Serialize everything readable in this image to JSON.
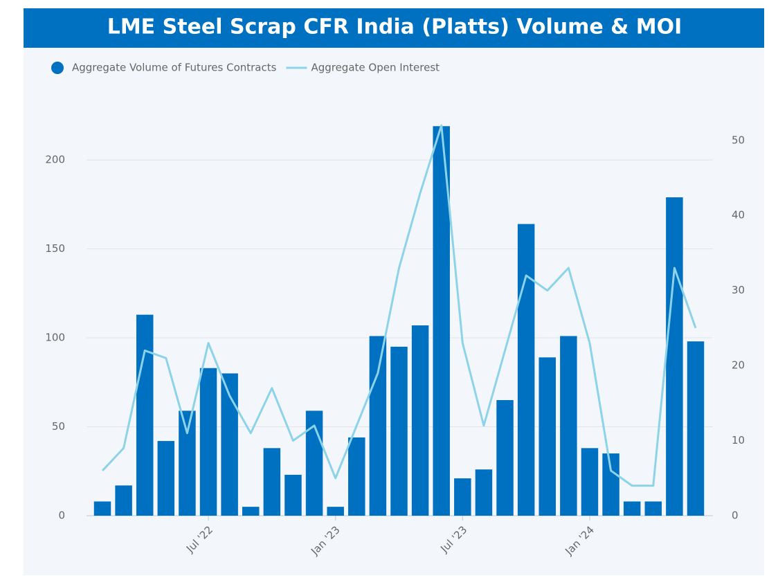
{
  "chart_data": {
    "type": "bar-line",
    "title": "LME Steel Scrap CFR India (Platts) Volume & MOI",
    "categories": [
      null,
      null,
      null,
      null,
      null,
      "Jul '22",
      null,
      null,
      null,
      null,
      null,
      "Jan '23",
      null,
      null,
      null,
      null,
      null,
      "Jul '23",
      null,
      null,
      null,
      null,
      null,
      "Jan '24",
      null,
      null,
      null,
      null,
      null
    ],
    "series": [
      {
        "name": "Aggregate Volume of Futures Contracts",
        "color": "#0070c0",
        "type": "bar",
        "values": [
          8,
          17,
          113,
          42,
          59,
          83,
          80,
          5,
          38,
          23,
          59,
          5,
          44,
          101,
          95,
          107,
          219,
          21,
          26,
          65,
          164,
          89,
          101,
          38,
          35,
          8,
          8,
          179,
          98
        ]
      },
      {
        "name": "Aggregate Open Interest",
        "color": "#8dd3e8",
        "type": "line",
        "axis": "y2",
        "values": [
          6,
          9,
          22,
          21,
          11,
          23,
          16,
          11,
          17,
          10,
          12,
          5,
          12,
          19,
          33,
          43,
          52,
          23,
          12,
          22,
          32,
          30,
          33,
          23,
          6,
          4,
          4,
          33,
          25
        ]
      }
    ],
    "ylim": [
      0,
      230
    ],
    "yticks": [
      0,
      50,
      100,
      150,
      200
    ],
    "y2lim": [
      0,
      54.5
    ],
    "y2ticks": [
      0,
      10,
      20,
      30,
      40,
      50
    ],
    "grid": true,
    "legend": "top-left"
  }
}
